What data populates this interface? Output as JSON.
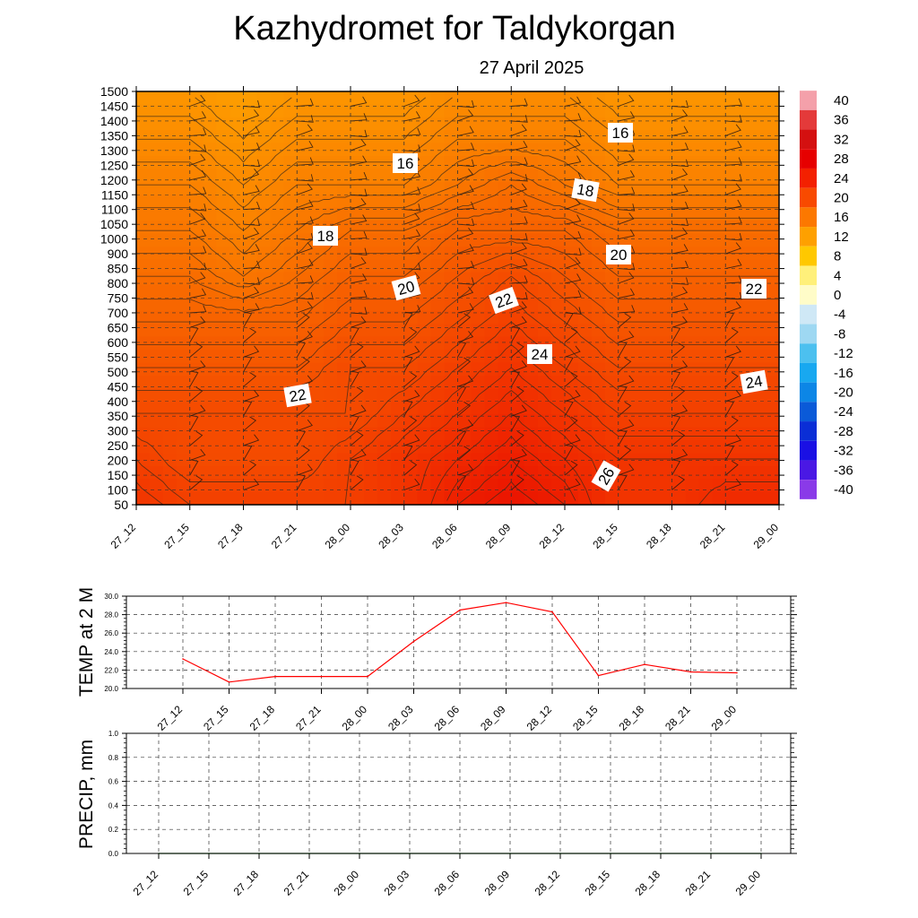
{
  "title": "Kazhydromet  for Taldykorgan",
  "subtitle": "27 April 2025",
  "colors": {
    "line_temp": "#ff0000",
    "line_precip": "#006400",
    "contour": "#3a2a1a",
    "barb": "#2a1a10",
    "grid": "#333333",
    "label_bg": "#ffffff"
  },
  "chart_data": [
    {
      "type": "heatmap",
      "description_key": "vertical_section",
      "x_ticks": [
        "27_12",
        "27_15",
        "27_18",
        "27_21",
        "28_00",
        "28_03",
        "28_06",
        "28_09",
        "28_12",
        "28_15",
        "28_18",
        "28_21",
        "29_00"
      ],
      "y_ticks": [
        1500,
        1450,
        1400,
        1350,
        1300,
        1250,
        1200,
        1150,
        1100,
        1050,
        1000,
        900,
        850,
        800,
        750,
        700,
        650,
        600,
        550,
        500,
        450,
        400,
        350,
        300,
        250,
        200,
        150,
        100,
        50
      ],
      "colorbar": {
        "labels": [
          "40",
          "36",
          "32",
          "28",
          "24",
          "20",
          "16",
          "12",
          "8",
          "4",
          "0",
          "-4",
          "-8",
          "-12",
          "-16",
          "-20",
          "-24",
          "-28",
          "-32",
          "-36",
          "-40"
        ],
        "colors": [
          "#f4a0aa",
          "#e43a3a",
          "#d41010",
          "#e60000",
          "#f32000",
          "#f84a00",
          "#fc7800",
          "#fea000",
          "#ffc800",
          "#fff07a",
          "#fffcc8",
          "#cfe8f6",
          "#9ed8f2",
          "#4cc0ef",
          "#18a8f0",
          "#0c86e6",
          "#0a5ad8",
          "#0a2ed6",
          "#1a10e4",
          "#4a18e4",
          "#8a3ae8"
        ]
      },
      "contour_labels": [
        "16",
        "16",
        "18",
        "18",
        "20",
        "20",
        "22",
        "22",
        "22",
        "24",
        "24",
        "26"
      ],
      "cells": [
        [
          15,
          15,
          14,
          15,
          15,
          15,
          16,
          16,
          16,
          15,
          15,
          15,
          15
        ],
        [
          16,
          16,
          15,
          16,
          16,
          16,
          17,
          17,
          17,
          16,
          16,
          16,
          16
        ],
        [
          17,
          17,
          16,
          17,
          17,
          17,
          18,
          19,
          18,
          17,
          17,
          17,
          17
        ],
        [
          18,
          18,
          17,
          18,
          19,
          19,
          20,
          20,
          20,
          19,
          19,
          19,
          19
        ],
        [
          19,
          19,
          18,
          19,
          20,
          20,
          21,
          22,
          21,
          20,
          20,
          20,
          20
        ],
        [
          20,
          20,
          20,
          20,
          21,
          21,
          22,
          23,
          22,
          21,
          21,
          21,
          21
        ],
        [
          21,
          21,
          21,
          21,
          22,
          22,
          23,
          24,
          23,
          22,
          22,
          22,
          22
        ],
        [
          22,
          22,
          22,
          22,
          22,
          23,
          24,
          25,
          24,
          23,
          23,
          23,
          23
        ],
        [
          23,
          22,
          22,
          22,
          23,
          24,
          25,
          26,
          25,
          24,
          24,
          24,
          24
        ],
        [
          24,
          23,
          23,
          23,
          23,
          24,
          26,
          27,
          26,
          24,
          24,
          25,
          25
        ]
      ]
    },
    {
      "type": "line",
      "ylabel": "TEMP at 2 M",
      "x_ticks": [
        "27_12",
        "27_15",
        "27_18",
        "27_21",
        "28_00",
        "28_03",
        "28_06",
        "28_09",
        "28_12",
        "28_15",
        "28_18",
        "28_21",
        "29_00"
      ],
      "y_ticks": [
        "30.0",
        "28.0",
        "26.0",
        "24.0",
        "22.0",
        "20.0"
      ],
      "ylim": [
        20,
        30
      ],
      "series": [
        {
          "values": [
            23.2,
            20.7,
            21.3,
            21.3,
            21.3,
            25.1,
            28.5,
            29.3,
            28.3,
            21.4,
            22.6,
            21.8,
            21.7
          ]
        }
      ]
    },
    {
      "type": "line",
      "ylabel": "PRECIP, mm",
      "x_ticks": [
        "27_12",
        "27_15",
        "27_18",
        "27_21",
        "28_00",
        "28_03",
        "28_06",
        "28_09",
        "28_12",
        "28_15",
        "28_18",
        "28_21",
        "29_00"
      ],
      "y_ticks": [
        "1.0",
        "0.8",
        "0.6",
        "0.4",
        "0.2",
        "0.0"
      ],
      "ylim": [
        0,
        1
      ],
      "series": [
        {
          "values": [
            0,
            0,
            0,
            0,
            0,
            0,
            0,
            0,
            0,
            0,
            0,
            0,
            0
          ]
        }
      ]
    }
  ]
}
